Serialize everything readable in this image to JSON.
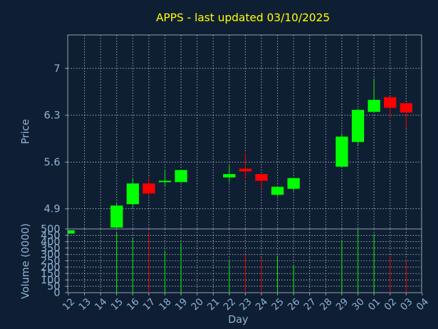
{
  "colors": {
    "background": "#0f1f33",
    "title": "#ffff00",
    "frame": "#9aa3ad",
    "grid": "#c8cdd3",
    "label": "#8fb3d1",
    "up": "#00ff00",
    "down": "#ff0000"
  },
  "chart_data": {
    "type": "candlestick",
    "title": "APPS - last updated 03/10/2025",
    "xlabel": "Day",
    "price_ylabel": "Price",
    "volume_ylabel": "Volume (0000)",
    "price_yticks": [
      4.9,
      5.6,
      6.3,
      7
    ],
    "price_ylim": [
      4.6,
      7.5
    ],
    "volume_yticks": [
      0,
      50,
      100,
      150,
      200,
      250,
      300,
      350,
      400,
      450,
      500
    ],
    "volume_ylim": [
      0,
      500
    ],
    "x_tick_labels": [
      "12",
      "13",
      "14",
      "15",
      "16",
      "17",
      "18",
      "19",
      "20",
      "21",
      "22",
      "23",
      "24",
      "25",
      "26",
      "27",
      "28",
      "29",
      "30",
      "01",
      "02",
      "03",
      "04"
    ],
    "grid": true,
    "candles": [
      {
        "day": "12",
        "open": 4.53,
        "high": 4.58,
        "low": 4.53,
        "close": 4.58,
        "volume": 0
      },
      {
        "day": "15",
        "open": 4.62,
        "high": 4.98,
        "low": 4.62,
        "close": 4.95,
        "volume": 470
      },
      {
        "day": "16",
        "open": 4.97,
        "high": 5.35,
        "low": 4.92,
        "close": 5.28,
        "volume": 430
      },
      {
        "day": "17",
        "open": 5.28,
        "high": 5.38,
        "low": 5.09,
        "close": 5.13,
        "volume": 480
      },
      {
        "day": "18",
        "open": 5.3,
        "high": 5.47,
        "low": 5.24,
        "close": 5.32,
        "volume": 330
      },
      {
        "day": "19",
        "open": 5.3,
        "high": 5.48,
        "low": 5.3,
        "close": 5.48,
        "volume": 390
      },
      {
        "day": "22",
        "open": 5.37,
        "high": 5.55,
        "low": 5.3,
        "close": 5.42,
        "volume": 250
      },
      {
        "day": "23",
        "open": 5.5,
        "high": 5.74,
        "low": 5.35,
        "close": 5.46,
        "volume": 300
      },
      {
        "day": "24",
        "open": 5.42,
        "high": 5.42,
        "low": 5.21,
        "close": 5.32,
        "volume": 270
      },
      {
        "day": "25",
        "open": 5.11,
        "high": 5.23,
        "low": 5.09,
        "close": 5.23,
        "volume": 290
      },
      {
        "day": "26",
        "open": 5.2,
        "high": 5.37,
        "low": 5.17,
        "close": 5.36,
        "volume": 220
      },
      {
        "day": "29",
        "open": 5.53,
        "high": 6.03,
        "low": 5.53,
        "close": 5.98,
        "volume": 410
      },
      {
        "day": "30",
        "open": 5.9,
        "high": 6.4,
        "low": 5.84,
        "close": 6.38,
        "volume": 500
      },
      {
        "day": "01",
        "open": 6.35,
        "high": 6.85,
        "low": 6.35,
        "close": 6.53,
        "volume": 460
      },
      {
        "day": "02",
        "open": 6.57,
        "high": 6.57,
        "low": 6.25,
        "close": 6.41,
        "volume": 290
      },
      {
        "day": "03",
        "open": 6.48,
        "high": 6.48,
        "low": 6.11,
        "close": 6.34,
        "volume": 260
      }
    ]
  }
}
